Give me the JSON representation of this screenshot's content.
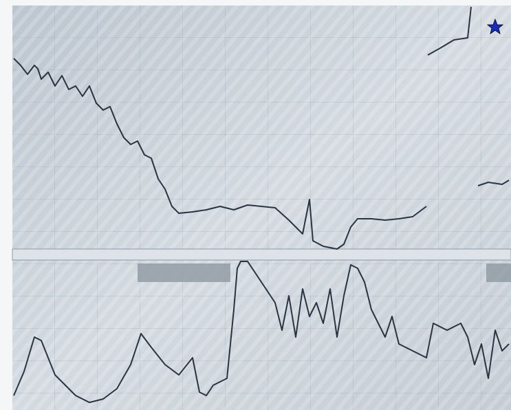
{
  "chart_data": [
    {
      "type": "line",
      "color": "#2a3440",
      "xlim": [
        0,
        725
      ],
      "ylim": [
        0,
        357
      ],
      "x": [
        2,
        12,
        22,
        32,
        37,
        42,
        52,
        62,
        72,
        82,
        92,
        102,
        112,
        122,
        132,
        142,
        152,
        162,
        172,
        182,
        192,
        202,
        212,
        222,
        232,
        242,
        262,
        282,
        302,
        322,
        342,
        362,
        382,
        402,
        422,
        432,
        437,
        452,
        472,
        482,
        492,
        502,
        522,
        542,
        562,
        582,
        602,
        603,
        604,
        622,
        642,
        662,
        667,
        670,
        677,
        692,
        712,
        722
      ],
      "values": [
        280,
        270,
        257,
        270,
        265,
        250,
        260,
        240,
        255,
        235,
        240,
        225,
        240,
        215,
        205,
        210,
        185,
        165,
        155,
        160,
        140,
        135,
        105,
        90,
        65,
        55,
        57,
        60,
        65,
        60,
        67,
        65,
        63,
        45,
        25,
        75,
        15,
        7,
        3,
        10,
        35,
        47,
        47,
        45,
        47,
        50,
        65,
        null,
        285,
        295,
        307,
        310,
        355,
        null,
        95,
        100,
        97,
        103
      ]
    },
    {
      "type": "line",
      "color": "#2a3440",
      "xlim": [
        0,
        725
      ],
      "ylim": [
        0,
        217
      ],
      "x": [
        2,
        17,
        32,
        42,
        52,
        62,
        77,
        92,
        112,
        132,
        152,
        172,
        187,
        202,
        222,
        242,
        262,
        272,
        282,
        292,
        312,
        322,
        327,
        332,
        342,
        362,
        382,
        392,
        402,
        412,
        422,
        432,
        442,
        452,
        462,
        472,
        482,
        492,
        502,
        512,
        522,
        532,
        542,
        552,
        562,
        582,
        602,
        612,
        632,
        652,
        662,
        672,
        682,
        692,
        702,
        712,
        722
      ],
      "values": [
        20,
        55,
        105,
        100,
        75,
        50,
        35,
        20,
        10,
        15,
        30,
        65,
        110,
        90,
        65,
        50,
        75,
        25,
        20,
        35,
        45,
        145,
        205,
        215,
        215,
        185,
        155,
        115,
        165,
        105,
        175,
        135,
        155,
        125,
        175,
        105,
        165,
        210,
        205,
        185,
        145,
        125,
        105,
        135,
        95,
        85,
        75,
        125,
        115,
        125,
        105,
        65,
        95,
        45,
        115,
        85,
        95
      ]
    }
  ]
}
